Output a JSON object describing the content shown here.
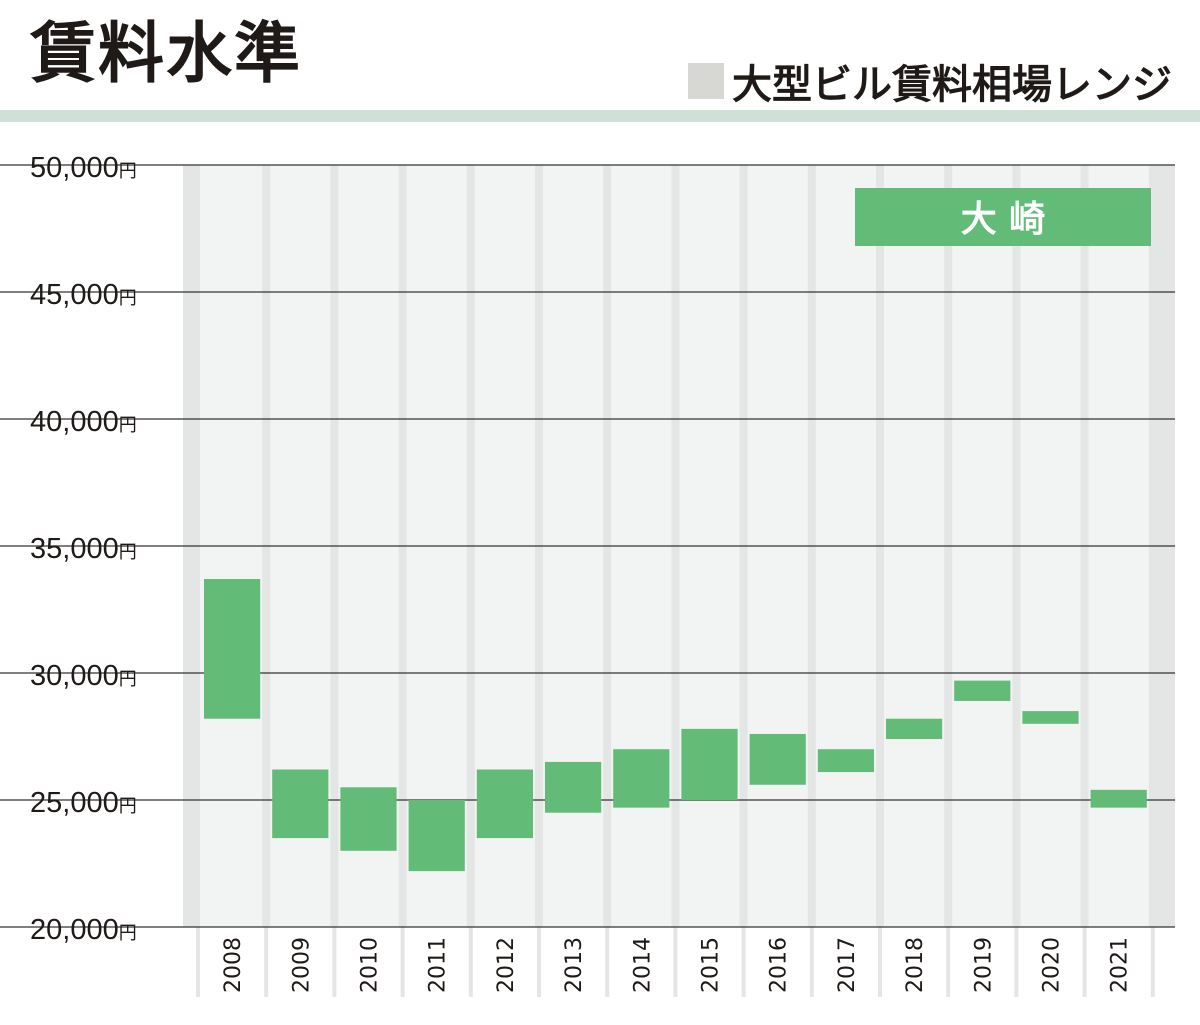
{
  "title": "賃料水準",
  "legend_label": "大型ビル賃料相場レンジ",
  "colors": {
    "bar": "#63bb78",
    "plot_bg": "#f2f4f3",
    "band": "#e3e6e5",
    "grid": "#333333",
    "legend_swatch": "#d7d8d3",
    "title_rule": "#cfe0d6"
  },
  "chart_data": {
    "type": "bar",
    "subtype": "floating-range",
    "location_label": "大 崎",
    "y_unit": "円",
    "ylim": [
      20000,
      50000
    ],
    "yticks": [
      {
        "value": 50000,
        "label": "50,000"
      },
      {
        "value": 45000,
        "label": "45,000"
      },
      {
        "value": 40000,
        "label": "40,000"
      },
      {
        "value": 35000,
        "label": "35,000"
      },
      {
        "value": 30000,
        "label": "30,000"
      },
      {
        "value": 25000,
        "label": "25,000"
      },
      {
        "value": 20000,
        "label": "20,000"
      }
    ],
    "categories": [
      "2008",
      "2009",
      "2010",
      "2011",
      "2012",
      "2013",
      "2014",
      "2015",
      "2016",
      "2017",
      "2018",
      "2019",
      "2020",
      "2021"
    ],
    "ranges": [
      [
        28200,
        33700
      ],
      [
        23500,
        26200
      ],
      [
        23000,
        25500
      ],
      [
        22200,
        25000
      ],
      [
        23500,
        26200
      ],
      [
        24500,
        26500
      ],
      [
        24700,
        27000
      ],
      [
        25000,
        27800
      ],
      [
        25600,
        27600
      ],
      [
        26100,
        27000
      ],
      [
        27400,
        28200
      ],
      [
        28900,
        29700
      ],
      [
        28000,
        28500
      ],
      [
        24700,
        25400
      ]
    ],
    "grid": true
  }
}
